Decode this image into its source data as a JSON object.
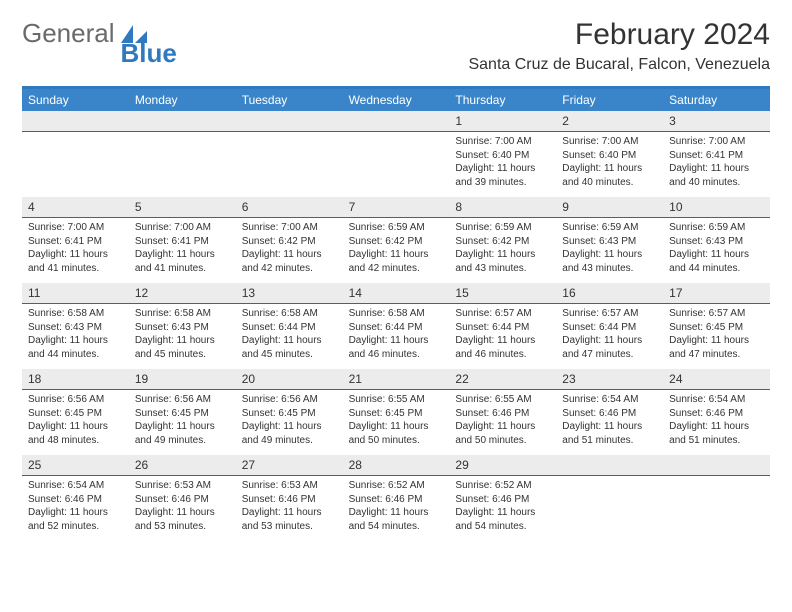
{
  "brand": {
    "part1": "General",
    "part2": "Blue"
  },
  "title": "February 2024",
  "location": "Santa Cruz de Bucaral, Falcon, Venezuela",
  "colors": {
    "header_bar": "#3a85c9",
    "accent_line": "#2f7abf",
    "daynum_bg": "#ececec",
    "daynum_border": "#336699",
    "text": "#333333",
    "logo_gray": "#6a6a6a",
    "logo_blue": "#2f7abf",
    "background": "#ffffff"
  },
  "typography": {
    "month_title_size": 30,
    "location_size": 16,
    "weekday_size": 12,
    "daynum_size": 12,
    "body_size": 10
  },
  "weekdays": [
    "Sunday",
    "Monday",
    "Tuesday",
    "Wednesday",
    "Thursday",
    "Friday",
    "Saturday"
  ],
  "weeks": [
    [
      {
        "num": "",
        "sunrise": "",
        "sunset": "",
        "daylight": ""
      },
      {
        "num": "",
        "sunrise": "",
        "sunset": "",
        "daylight": ""
      },
      {
        "num": "",
        "sunrise": "",
        "sunset": "",
        "daylight": ""
      },
      {
        "num": "",
        "sunrise": "",
        "sunset": "",
        "daylight": ""
      },
      {
        "num": "1",
        "sunrise": "Sunrise: 7:00 AM",
        "sunset": "Sunset: 6:40 PM",
        "daylight": "Daylight: 11 hours and 39 minutes."
      },
      {
        "num": "2",
        "sunrise": "Sunrise: 7:00 AM",
        "sunset": "Sunset: 6:40 PM",
        "daylight": "Daylight: 11 hours and 40 minutes."
      },
      {
        "num": "3",
        "sunrise": "Sunrise: 7:00 AM",
        "sunset": "Sunset: 6:41 PM",
        "daylight": "Daylight: 11 hours and 40 minutes."
      }
    ],
    [
      {
        "num": "4",
        "sunrise": "Sunrise: 7:00 AM",
        "sunset": "Sunset: 6:41 PM",
        "daylight": "Daylight: 11 hours and 41 minutes."
      },
      {
        "num": "5",
        "sunrise": "Sunrise: 7:00 AM",
        "sunset": "Sunset: 6:41 PM",
        "daylight": "Daylight: 11 hours and 41 minutes."
      },
      {
        "num": "6",
        "sunrise": "Sunrise: 7:00 AM",
        "sunset": "Sunset: 6:42 PM",
        "daylight": "Daylight: 11 hours and 42 minutes."
      },
      {
        "num": "7",
        "sunrise": "Sunrise: 6:59 AM",
        "sunset": "Sunset: 6:42 PM",
        "daylight": "Daylight: 11 hours and 42 minutes."
      },
      {
        "num": "8",
        "sunrise": "Sunrise: 6:59 AM",
        "sunset": "Sunset: 6:42 PM",
        "daylight": "Daylight: 11 hours and 43 minutes."
      },
      {
        "num": "9",
        "sunrise": "Sunrise: 6:59 AM",
        "sunset": "Sunset: 6:43 PM",
        "daylight": "Daylight: 11 hours and 43 minutes."
      },
      {
        "num": "10",
        "sunrise": "Sunrise: 6:59 AM",
        "sunset": "Sunset: 6:43 PM",
        "daylight": "Daylight: 11 hours and 44 minutes."
      }
    ],
    [
      {
        "num": "11",
        "sunrise": "Sunrise: 6:58 AM",
        "sunset": "Sunset: 6:43 PM",
        "daylight": "Daylight: 11 hours and 44 minutes."
      },
      {
        "num": "12",
        "sunrise": "Sunrise: 6:58 AM",
        "sunset": "Sunset: 6:43 PM",
        "daylight": "Daylight: 11 hours and 45 minutes."
      },
      {
        "num": "13",
        "sunrise": "Sunrise: 6:58 AM",
        "sunset": "Sunset: 6:44 PM",
        "daylight": "Daylight: 11 hours and 45 minutes."
      },
      {
        "num": "14",
        "sunrise": "Sunrise: 6:58 AM",
        "sunset": "Sunset: 6:44 PM",
        "daylight": "Daylight: 11 hours and 46 minutes."
      },
      {
        "num": "15",
        "sunrise": "Sunrise: 6:57 AM",
        "sunset": "Sunset: 6:44 PM",
        "daylight": "Daylight: 11 hours and 46 minutes."
      },
      {
        "num": "16",
        "sunrise": "Sunrise: 6:57 AM",
        "sunset": "Sunset: 6:44 PM",
        "daylight": "Daylight: 11 hours and 47 minutes."
      },
      {
        "num": "17",
        "sunrise": "Sunrise: 6:57 AM",
        "sunset": "Sunset: 6:45 PM",
        "daylight": "Daylight: 11 hours and 47 minutes."
      }
    ],
    [
      {
        "num": "18",
        "sunrise": "Sunrise: 6:56 AM",
        "sunset": "Sunset: 6:45 PM",
        "daylight": "Daylight: 11 hours and 48 minutes."
      },
      {
        "num": "19",
        "sunrise": "Sunrise: 6:56 AM",
        "sunset": "Sunset: 6:45 PM",
        "daylight": "Daylight: 11 hours and 49 minutes."
      },
      {
        "num": "20",
        "sunrise": "Sunrise: 6:56 AM",
        "sunset": "Sunset: 6:45 PM",
        "daylight": "Daylight: 11 hours and 49 minutes."
      },
      {
        "num": "21",
        "sunrise": "Sunrise: 6:55 AM",
        "sunset": "Sunset: 6:45 PM",
        "daylight": "Daylight: 11 hours and 50 minutes."
      },
      {
        "num": "22",
        "sunrise": "Sunrise: 6:55 AM",
        "sunset": "Sunset: 6:46 PM",
        "daylight": "Daylight: 11 hours and 50 minutes."
      },
      {
        "num": "23",
        "sunrise": "Sunrise: 6:54 AM",
        "sunset": "Sunset: 6:46 PM",
        "daylight": "Daylight: 11 hours and 51 minutes."
      },
      {
        "num": "24",
        "sunrise": "Sunrise: 6:54 AM",
        "sunset": "Sunset: 6:46 PM",
        "daylight": "Daylight: 11 hours and 51 minutes."
      }
    ],
    [
      {
        "num": "25",
        "sunrise": "Sunrise: 6:54 AM",
        "sunset": "Sunset: 6:46 PM",
        "daylight": "Daylight: 11 hours and 52 minutes."
      },
      {
        "num": "26",
        "sunrise": "Sunrise: 6:53 AM",
        "sunset": "Sunset: 6:46 PM",
        "daylight": "Daylight: 11 hours and 53 minutes."
      },
      {
        "num": "27",
        "sunrise": "Sunrise: 6:53 AM",
        "sunset": "Sunset: 6:46 PM",
        "daylight": "Daylight: 11 hours and 53 minutes."
      },
      {
        "num": "28",
        "sunrise": "Sunrise: 6:52 AM",
        "sunset": "Sunset: 6:46 PM",
        "daylight": "Daylight: 11 hours and 54 minutes."
      },
      {
        "num": "29",
        "sunrise": "Sunrise: 6:52 AM",
        "sunset": "Sunset: 6:46 PM",
        "daylight": "Daylight: 11 hours and 54 minutes."
      },
      {
        "num": "",
        "sunrise": "",
        "sunset": "",
        "daylight": ""
      },
      {
        "num": "",
        "sunrise": "",
        "sunset": "",
        "daylight": ""
      }
    ]
  ]
}
